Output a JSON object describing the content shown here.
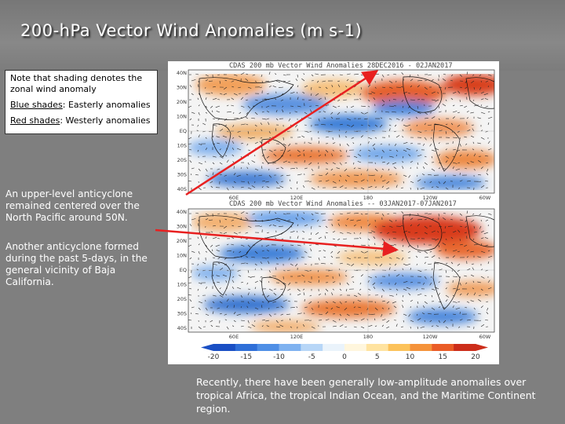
{
  "title": "200-hPa Vector Wind Anomalies (m s-1)",
  "note": {
    "line1": "Note that shading denotes the zonal wind anomaly",
    "blue_label": "Blue shades",
    "blue_text": ": Easterly anomalies",
    "red_label": "Red shades",
    "red_text": ": Westerly anomalies"
  },
  "annotation1": "An upper-level anticyclone remained centered over the North Pacific around 50N.",
  "annotation2": "Another anticyclone formed during the past 5-days, in the general vicinity of Baja California.",
  "bottom_text": "Recently, there have been generally low-amplitude anomalies over tropical Africa, the tropical Indian Ocean, and the Maritime Continent region.",
  "map_top_title": "CDAS 200 mb Vector Wind Anomalies    28DEC2016 - 02JAN2017",
  "map_bottom_title": "CDAS 200 mb Vector Wind Anomalies -- 03JAN2017-07JAN2017",
  "lat_labels": [
    "40N",
    "30N",
    "20N",
    "10N",
    "EQ",
    "10S",
    "20S",
    "30S",
    "40S"
  ],
  "lon_labels": [
    "60E",
    "120E",
    "180",
    "120W",
    "60W"
  ],
  "colorbar": {
    "labels": [
      "-20",
      "-15",
      "-10",
      "-5",
      "0",
      "5",
      "10",
      "15",
      "20"
    ],
    "colors": [
      "#1a4fc4",
      "#2f6fd8",
      "#4f8fe6",
      "#7fb2f0",
      "#b7d6f7",
      "#eaf3fb",
      "#fff6dd",
      "#ffe3a0",
      "#fcc25a",
      "#f5933a",
      "#ea5c26",
      "#cc2d1a"
    ]
  },
  "arrow_color": "#e82020"
}
